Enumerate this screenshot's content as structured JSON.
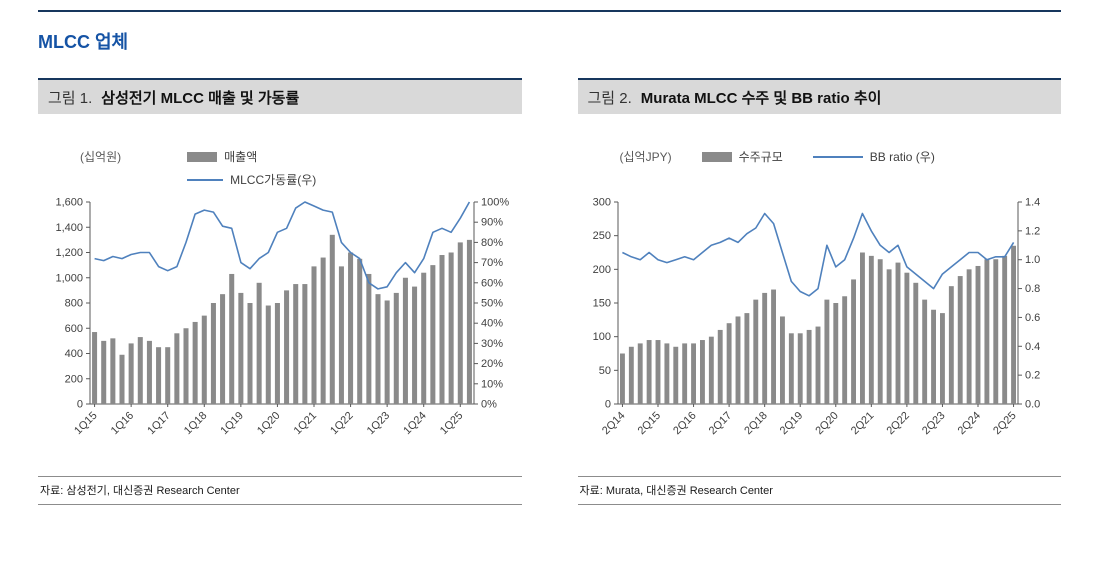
{
  "page": {
    "title": "MLCC 업체"
  },
  "figure1": {
    "label": "그림 1.",
    "title": "삼성전기 MLCC 매출 및 가동률",
    "unit_label": "(십억원)",
    "legend_bar": "매출액",
    "legend_line": "MLCC가동률(우)",
    "source": "자료: 삼성전기, 대신증권 Research Center"
  },
  "figure2": {
    "label": "그림 2.",
    "title": "Murata MLCC 수주 및 BB ratio 추이",
    "unit_label": "(십억JPY)",
    "legend_bar": "수주규모",
    "legend_line": "BB ratio (우)",
    "source": "자료: Murata, 대신증권 Research Center"
  },
  "colors": {
    "bar": "#8a8a8a",
    "line": "#4f81bd",
    "axis": "#595959",
    "rule_navy": "#17365d",
    "header_bg": "#d9d9d9",
    "title_blue": "#1553a5"
  },
  "chart_data": [
    {
      "type": "bar+line",
      "title": "삼성전기 MLCC 매출 및 가동률",
      "grid": false,
      "legend_position": "top",
      "x_label_every": 4,
      "categories": [
        "1Q15",
        "2Q15",
        "3Q15",
        "4Q15",
        "1Q16",
        "2Q16",
        "3Q16",
        "4Q16",
        "1Q17",
        "2Q17",
        "3Q17",
        "4Q17",
        "1Q18",
        "2Q18",
        "3Q18",
        "4Q18",
        "1Q19",
        "2Q19",
        "3Q19",
        "4Q19",
        "1Q20",
        "2Q20",
        "3Q20",
        "4Q20",
        "1Q21",
        "2Q21",
        "3Q21",
        "4Q21",
        "1Q22",
        "2Q22",
        "3Q22",
        "4Q22",
        "1Q23",
        "2Q23",
        "3Q23",
        "4Q23",
        "1Q24",
        "2Q24",
        "3Q24",
        "4Q24",
        "1Q25",
        "2Q25"
      ],
      "series": [
        {
          "name": "매출액",
          "type": "bar",
          "axis": "left",
          "values": [
            570,
            500,
            520,
            390,
            480,
            530,
            500,
            450,
            450,
            560,
            600,
            650,
            700,
            800,
            870,
            1030,
            880,
            800,
            960,
            780,
            800,
            900,
            950,
            950,
            1090,
            1160,
            1340,
            1090,
            1200,
            1150,
            1030,
            870,
            820,
            880,
            1000,
            930,
            1040,
            1100,
            1180,
            1200,
            1280,
            1300
          ]
        },
        {
          "name": "MLCC가동률(우)",
          "type": "line",
          "axis": "right",
          "values": [
            72,
            71,
            73,
            72,
            74,
            75,
            75,
            68,
            66,
            68,
            80,
            94,
            96,
            95,
            88,
            87,
            70,
            67,
            72,
            75,
            85,
            87,
            97,
            100,
            98,
            96,
            95,
            80,
            75,
            72,
            60,
            57,
            58,
            65,
            70,
            65,
            72,
            85,
            87,
            85,
            92,
            100
          ]
        }
      ],
      "left_axis": {
        "label": "(십억원)",
        "min": 0,
        "max": 1600,
        "step": 200,
        "ticks": [
          "0",
          "200",
          "400",
          "600",
          "800",
          "1,000",
          "1,200",
          "1,400",
          "1,600"
        ]
      },
      "right_axis": {
        "label": "MLCC가동률(우)",
        "min": 0,
        "max": 100,
        "step": 10,
        "ticks": [
          "0%",
          "10%",
          "20%",
          "30%",
          "40%",
          "50%",
          "60%",
          "70%",
          "80%",
          "90%",
          "100%"
        ]
      }
    },
    {
      "type": "bar+line",
      "title": "Murata MLCC 수주 및 BB ratio 추이",
      "grid": false,
      "legend_position": "top",
      "x_label_every": 4,
      "categories": [
        "2Q14",
        "3Q14",
        "4Q14",
        "1Q15",
        "2Q15",
        "3Q15",
        "4Q15",
        "1Q16",
        "2Q16",
        "3Q16",
        "4Q16",
        "1Q17",
        "2Q17",
        "3Q17",
        "4Q17",
        "1Q18",
        "2Q18",
        "3Q18",
        "4Q18",
        "1Q19",
        "2Q19",
        "3Q19",
        "4Q19",
        "1Q20",
        "2Q20",
        "3Q20",
        "4Q20",
        "1Q21",
        "2Q21",
        "3Q21",
        "4Q21",
        "1Q22",
        "2Q22",
        "3Q22",
        "4Q22",
        "1Q23",
        "2Q23",
        "3Q23",
        "4Q23",
        "1Q24",
        "2Q24",
        "3Q24",
        "4Q24",
        "1Q25",
        "2Q25"
      ],
      "series": [
        {
          "name": "수주규모",
          "type": "bar",
          "axis": "left",
          "values": [
            75,
            85,
            90,
            95,
            95,
            90,
            85,
            90,
            90,
            95,
            100,
            110,
            120,
            130,
            135,
            155,
            165,
            170,
            130,
            105,
            105,
            110,
            115,
            155,
            150,
            160,
            185,
            225,
            220,
            215,
            200,
            210,
            195,
            180,
            155,
            140,
            135,
            175,
            190,
            200,
            205,
            215,
            215,
            220,
            235
          ]
        },
        {
          "name": "BB ratio (우)",
          "type": "line",
          "axis": "right",
          "values": [
            1.05,
            1.02,
            1.0,
            1.05,
            1.0,
            0.98,
            1.0,
            1.02,
            1.0,
            1.05,
            1.1,
            1.12,
            1.15,
            1.12,
            1.18,
            1.22,
            1.32,
            1.25,
            1.05,
            0.85,
            0.78,
            0.75,
            0.8,
            1.1,
            0.95,
            1.0,
            1.15,
            1.32,
            1.2,
            1.1,
            1.05,
            1.1,
            0.95,
            0.9,
            0.85,
            0.8,
            0.9,
            0.95,
            1.0,
            1.05,
            1.05,
            1.0,
            1.02,
            1.02,
            1.12
          ]
        }
      ],
      "left_axis": {
        "label": "(십억JPY)",
        "min": 0,
        "max": 300,
        "step": 50,
        "ticks": [
          "0",
          "50",
          "100",
          "150",
          "200",
          "250",
          "300"
        ]
      },
      "right_axis": {
        "label": "BB ratio (우)",
        "min": 0,
        "max": 1.4,
        "step": 0.2,
        "ticks": [
          "0.0",
          "0.2",
          "0.4",
          "0.6",
          "0.8",
          "1.0",
          "1.2",
          "1.4"
        ]
      }
    }
  ]
}
